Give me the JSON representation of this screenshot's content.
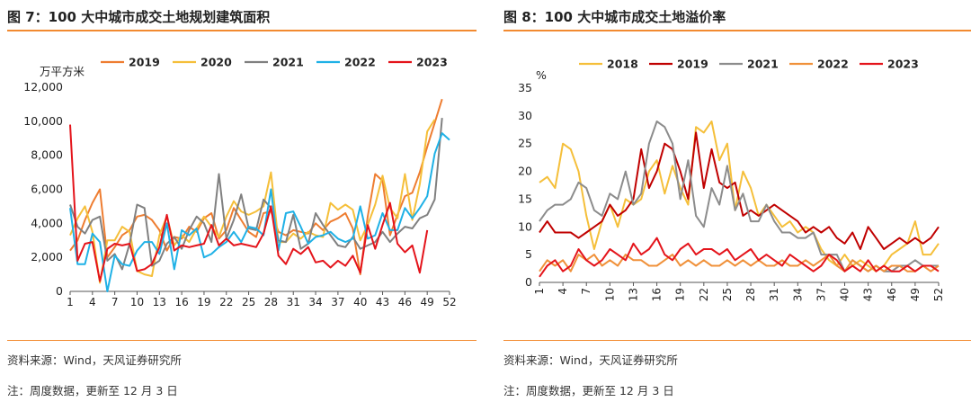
{
  "figures": [
    {
      "title": "图 7：100 大中城市成交土地规划建筑面积",
      "source": "资料来源：Wind，天风证券研究所",
      "remark": "注：周度数据，更新至 12 月 3 日",
      "colors": {
        "2019": "#ee7d31",
        "2020": "#f5bf3a",
        "2021": "#808080",
        "2022": "#1fb1e6",
        "2023": "#e4141b"
      }
    },
    {
      "title": "图 8：100 大中城市成交土地溢价率",
      "source": "资料来源：Wind，天风证券研究所",
      "remark": "注：周度数据，更新至 12 月 3 日",
      "colors": {
        "2018": "#f5bf3a",
        "2019": "#c00000",
        "2021": "#8c8c8c",
        "2022": "#f0913a",
        "2023": "#e4141b"
      }
    }
  ],
  "chart_data": [
    {
      "type": "line",
      "title": "",
      "unit_label": "万平方米",
      "xlabel": "",
      "ylabel": "",
      "x": [
        1,
        2,
        3,
        4,
        5,
        6,
        7,
        8,
        9,
        10,
        11,
        12,
        13,
        14,
        15,
        16,
        17,
        18,
        19,
        20,
        21,
        22,
        23,
        24,
        25,
        26,
        27,
        28,
        29,
        30,
        31,
        32,
        33,
        34,
        35,
        36,
        37,
        38,
        39,
        40,
        41,
        42,
        43,
        44,
        45,
        46,
        47,
        48,
        49,
        50,
        51,
        52
      ],
      "x_ticks": [
        1,
        4,
        7,
        10,
        13,
        16,
        19,
        22,
        25,
        28,
        31,
        34,
        37,
        40,
        43,
        46,
        49,
        52
      ],
      "y_ticks": [
        "0",
        "2,000",
        "4,000",
        "6,000",
        "8,000",
        "10,000",
        "12,000"
      ],
      "ylim": [
        0,
        12000
      ],
      "legend_position": "top",
      "grid": false,
      "series": [
        {
          "name": "2019",
          "values": [
            2400,
            3000,
            4200,
            5200,
            6000,
            2000,
            2600,
            3300,
            3600,
            4400,
            4500,
            4200,
            3600,
            2400,
            3200,
            3100,
            3800,
            3500,
            4300,
            4600,
            3100,
            3600,
            4900,
            4200,
            3500,
            3200,
            4600,
            4700,
            3500,
            3300,
            3600,
            3500,
            3400,
            4000,
            3600,
            4100,
            4300,
            4600,
            3700,
            1000,
            4400,
            6900,
            6500,
            3300,
            4500,
            5600,
            5800,
            7000,
            8500,
            9900,
            11300,
            null
          ]
        },
        {
          "name": "2020",
          "values": [
            3300,
            4300,
            5000,
            3500,
            500,
            3000,
            3000,
            3800,
            3500,
            1200,
            1000,
            900,
            3300,
            4400,
            2700,
            3300,
            2900,
            3700,
            4400,
            3800,
            3200,
            4400,
            5300,
            4700,
            4500,
            4700,
            5000,
            7000,
            2900,
            2900,
            3400,
            3100,
            3500,
            3300,
            3200,
            5200,
            4800,
            5100,
            4800,
            3000,
            3900,
            5100,
            6800,
            4900,
            4300,
            6900,
            4200,
            6300,
            9400,
            10100,
            null,
            null
          ]
        },
        {
          "name": "2021",
          "values": [
            5100,
            3800,
            3400,
            4200,
            4400,
            1800,
            2200,
            1300,
            2800,
            5100,
            4900,
            1500,
            1800,
            2800,
            3200,
            2500,
            3600,
            4400,
            4000,
            2900,
            6900,
            3100,
            4200,
            5700,
            3700,
            3600,
            5400,
            4900,
            3000,
            2900,
            4500,
            2500,
            2800,
            4600,
            3900,
            3300,
            2700,
            2600,
            3200,
            2500,
            2700,
            2900,
            3500,
            2900,
            3400,
            3800,
            3700,
            4300,
            4500,
            5400,
            10200,
            null
          ]
        },
        {
          "name": "2022",
          "values": [
            4900,
            1600,
            1600,
            3400,
            2900,
            0,
            2100,
            1600,
            1500,
            2400,
            2900,
            2900,
            2200,
            4000,
            1300,
            3600,
            3300,
            3700,
            2000,
            2200,
            2600,
            2900,
            3500,
            2900,
            3800,
            3700,
            3300,
            6000,
            2400,
            4600,
            4700,
            3800,
            2800,
            3200,
            3300,
            3500,
            3100,
            2900,
            3100,
            5000,
            3100,
            3300,
            4600,
            3600,
            3600,
            4900,
            4300,
            4900,
            5600,
            8100,
            9300,
            8900
          ]
        },
        {
          "name": "2023",
          "values": [
            9800,
            1800,
            2800,
            2900,
            600,
            2500,
            2800,
            2700,
            2800,
            1200,
            1300,
            1600,
            2600,
            4500,
            2400,
            2700,
            2600,
            2700,
            2800,
            3900,
            2700,
            3100,
            2700,
            2800,
            2700,
            2600,
            3400,
            5000,
            2100,
            1600,
            2500,
            2200,
            2600,
            1700,
            1800,
            1400,
            1800,
            1500,
            2100,
            1100,
            3900,
            2500,
            3900,
            5200,
            2800,
            2300,
            2700,
            1100,
            3600,
            null,
            null,
            null
          ]
        }
      ]
    },
    {
      "type": "line",
      "title": "",
      "unit_label": "%",
      "xlabel": "",
      "ylabel": "",
      "x": [
        1,
        2,
        3,
        4,
        5,
        6,
        7,
        8,
        9,
        10,
        11,
        12,
        13,
        14,
        15,
        16,
        17,
        18,
        19,
        20,
        21,
        22,
        23,
        24,
        25,
        26,
        27,
        28,
        29,
        30,
        31,
        32,
        33,
        34,
        35,
        36,
        37,
        38,
        39,
        40,
        41,
        42,
        43,
        44,
        45,
        46,
        47,
        48,
        49,
        50,
        51,
        52
      ],
      "x_ticks": [
        1,
        4,
        7,
        10,
        13,
        16,
        19,
        22,
        25,
        28,
        31,
        34,
        37,
        40,
        43,
        46,
        49,
        52
      ],
      "y_ticks": [
        "0",
        "5",
        "10",
        "15",
        "20",
        "25",
        "30",
        "35"
      ],
      "ylim": [
        0,
        35
      ],
      "legend_position": "top",
      "grid": false,
      "series": [
        {
          "name": "2018",
          "values": [
            18,
            19,
            17,
            25,
            24,
            20,
            12,
            6,
            11,
            14,
            10,
            15,
            14,
            15,
            20,
            22,
            16,
            21,
            17,
            14,
            28,
            27,
            29,
            22,
            25,
            13,
            20,
            17,
            12,
            14,
            12,
            10,
            11,
            9,
            10,
            9,
            6,
            4,
            3,
            5,
            3,
            4,
            3,
            2,
            3,
            5,
            6,
            7,
            11,
            5,
            5,
            7
          ]
        },
        {
          "name": "2019",
          "values": [
            9,
            11,
            9,
            9,
            9,
            8,
            9,
            10,
            11,
            14,
            12,
            13,
            15,
            24,
            17,
            20,
            25,
            24,
            20,
            15,
            27,
            17,
            24,
            18,
            17,
            18,
            12,
            13,
            12,
            13,
            14,
            13,
            12,
            11,
            9,
            10,
            9,
            10,
            8,
            7,
            9,
            6,
            10,
            8,
            6,
            7,
            8,
            7,
            8,
            7,
            8,
            10
          ]
        },
        {
          "name": "2021",
          "values": [
            11,
            13,
            14,
            14,
            15,
            18,
            17,
            13,
            12,
            16,
            15,
            20,
            14,
            16,
            25,
            29,
            28,
            25,
            15,
            22,
            12,
            10,
            17,
            14,
            21,
            13,
            16,
            11,
            11,
            14,
            11,
            9,
            9,
            8,
            8,
            9,
            5,
            5,
            5,
            2,
            4,
            3,
            2,
            3,
            2,
            2,
            3,
            3,
            4,
            3,
            3,
            3
          ]
        },
        {
          "name": "2022",
          "values": [
            2,
            4,
            3,
            4,
            2,
            5,
            4,
            5,
            3,
            4,
            3,
            5,
            4,
            4,
            3,
            3,
            4,
            5,
            3,
            4,
            3,
            4,
            3,
            3,
            4,
            3,
            4,
            3,
            4,
            3,
            3,
            4,
            3,
            3,
            4,
            3,
            4,
            5,
            3,
            2,
            4,
            3,
            2,
            3,
            2,
            3,
            3,
            2,
            2,
            3,
            2,
            3
          ]
        },
        {
          "name": "2023",
          "values": [
            1,
            3,
            4,
            2,
            3,
            6,
            4,
            3,
            4,
            6,
            5,
            4,
            7,
            5,
            6,
            8,
            5,
            4,
            6,
            7,
            5,
            6,
            6,
            5,
            6,
            4,
            5,
            6,
            4,
            5,
            4,
            3,
            5,
            4,
            3,
            2,
            3,
            5,
            4,
            2,
            3,
            2,
            4,
            2,
            3,
            2,
            2,
            3,
            2,
            3,
            3,
            2
          ]
        }
      ]
    }
  ]
}
